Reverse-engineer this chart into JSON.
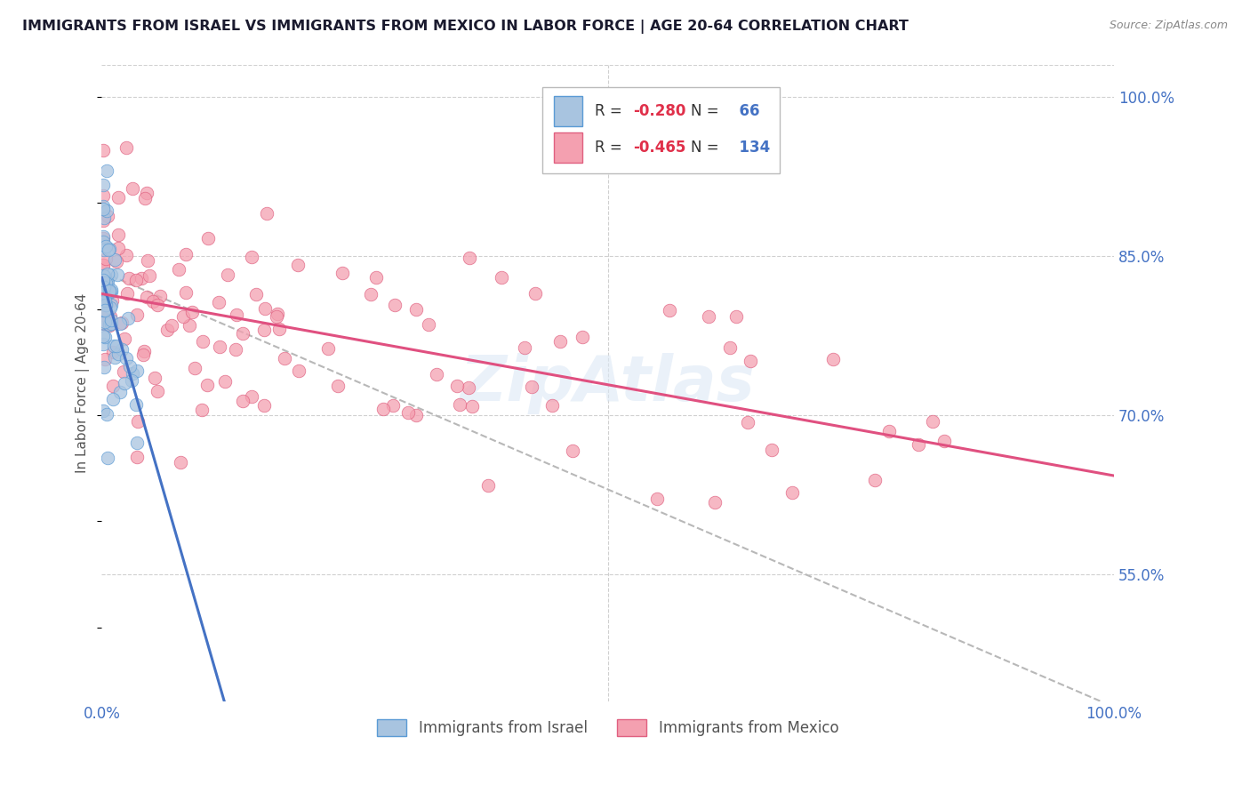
{
  "title": "IMMIGRANTS FROM ISRAEL VS IMMIGRANTS FROM MEXICO IN LABOR FORCE | AGE 20-64 CORRELATION CHART",
  "source": "Source: ZipAtlas.com",
  "ylabel": "In Labor Force | Age 20-64",
  "xlim": [
    0.0,
    1.0
  ],
  "ylim": [
    0.43,
    1.03
  ],
  "xtick_labels": [
    "0.0%",
    "100.0%"
  ],
  "xtick_vals": [
    0.0,
    1.0
  ],
  "ytick_labels": [
    "100.0%",
    "85.0%",
    "70.0%",
    "55.0%"
  ],
  "ytick_vals": [
    1.0,
    0.85,
    0.7,
    0.55
  ],
  "israel_color": "#a8c4e0",
  "mexico_color": "#f4a0b0",
  "israel_edge": "#5b9bd5",
  "mexico_edge": "#e06080",
  "israel_R": -0.28,
  "israel_N": 66,
  "mexico_R": -0.465,
  "mexico_N": 134,
  "trend_israel_color": "#4472c4",
  "trend_mexico_color": "#e05080",
  "trend_dashed_color": "#b8b8b8",
  "watermark": "ZipAtlas",
  "background_color": "#ffffff",
  "grid_color": "#d0d0d0",
  "title_color": "#1a1a2e",
  "source_color": "#888888",
  "axis_label_color": "#555555",
  "tick_color": "#4472c4"
}
